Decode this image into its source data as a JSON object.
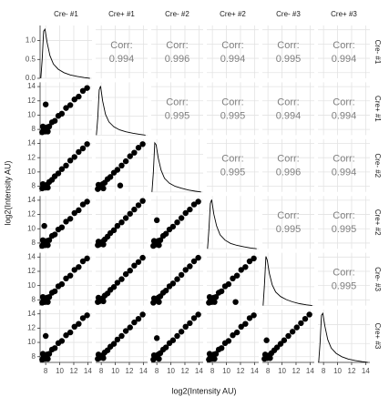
{
  "chart_data": {
    "type": "pairs",
    "x_label": "log2(Intensity AU)",
    "y_label": "log2(Intensity AU)",
    "variables": [
      "Cre- #1",
      "Cre+ #1",
      "Cre- #2",
      "Cre+ #2",
      "Cre- #3",
      "Cre+ #3"
    ],
    "corr_label": "Corr:",
    "correlations": [
      [
        0.994,
        0.996,
        0.994,
        0.995,
        0.994
      ],
      [
        0.995,
        0.995,
        0.994,
        0.994
      ],
      [
        0.995,
        0.996,
        0.994
      ],
      [
        0.995,
        0.995
      ],
      [
        0.995
      ]
    ],
    "xlim": [
      7.2,
      14.6
    ],
    "xticks": [
      8,
      10,
      12,
      14
    ],
    "ylim": [
      7.2,
      14.6
    ],
    "yticks": [
      8,
      10,
      12,
      14
    ],
    "density_ylim": [
      0,
      1.4
    ],
    "density_yticks": [
      {
        "value": 0,
        "label": "0.0"
      },
      {
        "value": 0.5,
        "label": "0.5"
      },
      {
        "value": 1,
        "label": "1.0"
      }
    ],
    "grid": true,
    "point_color": "#000000",
    "density": [
      {
        "x": [
          7.3,
          7.5,
          7.7,
          7.9,
          8.2,
          8.6,
          9.1,
          9.8,
          10.6,
          11.5,
          12.5,
          13.5,
          14.3
        ],
        "y": [
          0,
          0.5,
          1.25,
          1.3,
          0.95,
          0.6,
          0.38,
          0.24,
          0.15,
          0.09,
          0.05,
          0.02,
          0
        ]
      },
      {
        "x": [
          7.3,
          7.5,
          7.7,
          7.9,
          8.2,
          8.6,
          9.1,
          9.8,
          10.6,
          11.5,
          12.5,
          13.5,
          14.3
        ],
        "y": [
          0,
          0.45,
          1.2,
          1.3,
          0.9,
          0.55,
          0.35,
          0.22,
          0.14,
          0.09,
          0.05,
          0.02,
          0
        ]
      },
      {
        "x": [
          7.3,
          7.5,
          7.7,
          7.9,
          8.2,
          8.6,
          9.1,
          9.8,
          10.6,
          11.5,
          12.5,
          13.5,
          14.3
        ],
        "y": [
          0,
          0.5,
          1.3,
          1.25,
          0.9,
          0.58,
          0.36,
          0.23,
          0.15,
          0.1,
          0.05,
          0.02,
          0
        ]
      },
      {
        "x": [
          7.3,
          7.5,
          7.7,
          7.9,
          8.2,
          8.6,
          9.1,
          9.8,
          10.6,
          11.5,
          12.5,
          13.5,
          14.3
        ],
        "y": [
          0,
          0.5,
          1.2,
          1.3,
          0.92,
          0.6,
          0.37,
          0.23,
          0.14,
          0.09,
          0.05,
          0.02,
          0
        ]
      },
      {
        "x": [
          7.3,
          7.5,
          7.7,
          7.9,
          8.2,
          8.6,
          9.1,
          9.8,
          10.6,
          11.5,
          12.5,
          13.5,
          14.3
        ],
        "y": [
          0,
          0.55,
          1.3,
          1.2,
          0.85,
          0.55,
          0.36,
          0.24,
          0.16,
          0.1,
          0.05,
          0.02,
          0
        ]
      },
      {
        "x": [
          7.3,
          7.5,
          7.7,
          7.9,
          8.2,
          8.6,
          9.1,
          9.8,
          10.6,
          11.5,
          12.5,
          13.5,
          14.3
        ],
        "y": [
          0,
          0.5,
          1.25,
          1.3,
          0.95,
          0.6,
          0.38,
          0.24,
          0.15,
          0.09,
          0.05,
          0.02,
          0
        ]
      }
    ],
    "scatter": [
      [
        {
          "x": [
            7.5,
            7.7,
            7.9,
            8.2,
            8.5,
            8.9,
            9.3,
            9.8,
            10.3,
            10.9,
            11.5,
            12.1,
            12.7,
            13.3,
            13.9,
            7.6,
            8.3,
            8.0
          ],
          "y": [
            7.6,
            7.9,
            7.7,
            8.3,
            8.4,
            9.0,
            9.2,
            9.9,
            10.2,
            11.0,
            11.4,
            12.2,
            12.6,
            13.4,
            13.8,
            8.4,
            7.7,
            11.5
          ]
        }
      ],
      [
        {
          "x": [
            7.5,
            7.7,
            7.9,
            8.2,
            8.5,
            8.9,
            9.3,
            9.8,
            10.3,
            10.9,
            11.5,
            12.1,
            12.7,
            13.3,
            13.9,
            7.6,
            8.3
          ],
          "y": [
            7.7,
            7.9,
            7.8,
            8.2,
            8.6,
            8.9,
            9.4,
            9.8,
            10.4,
            10.9,
            11.6,
            12.1,
            12.8,
            13.3,
            13.9,
            8.3,
            7.8
          ]
        },
        {
          "x": [
            7.5,
            7.7,
            7.9,
            8.2,
            8.5,
            8.9,
            9.3,
            9.8,
            10.3,
            10.9,
            11.5,
            12.1,
            12.7,
            13.3,
            13.9,
            7.6,
            8.3,
            10.7
          ],
          "y": [
            7.6,
            7.8,
            7.9,
            8.3,
            8.5,
            9.0,
            9.3,
            9.9,
            10.3,
            10.9,
            11.5,
            12.2,
            12.7,
            13.4,
            13.9,
            8.2,
            7.7,
            8.1
          ]
        }
      ],
      [
        {
          "x": [
            7.5,
            7.7,
            7.9,
            8.2,
            8.5,
            8.9,
            9.3,
            9.8,
            10.3,
            10.9,
            11.5,
            12.1,
            12.7,
            13.3,
            13.9,
            7.6,
            8.3,
            7.8
          ],
          "y": [
            7.6,
            7.9,
            7.7,
            8.3,
            8.4,
            9.0,
            9.2,
            9.9,
            10.2,
            11.0,
            11.4,
            12.2,
            12.6,
            13.4,
            13.8,
            8.4,
            7.7,
            10.4
          ]
        },
        {
          "x": [
            7.5,
            7.7,
            7.9,
            8.2,
            8.5,
            8.9,
            9.3,
            9.8,
            10.3,
            10.9,
            11.5,
            12.1,
            12.7,
            13.3,
            13.9,
            7.6,
            8.3
          ],
          "y": [
            7.7,
            7.8,
            7.9,
            8.2,
            8.5,
            8.9,
            9.4,
            9.8,
            10.4,
            10.9,
            11.5,
            12.1,
            12.7,
            13.3,
            13.9,
            8.2,
            7.8
          ]
        },
        {
          "x": [
            7.5,
            7.7,
            7.9,
            8.2,
            8.5,
            8.9,
            9.3,
            9.8,
            10.3,
            10.9,
            11.5,
            12.1,
            12.7,
            13.3,
            13.9,
            7.6,
            8.3,
            8.0
          ],
          "y": [
            7.6,
            7.9,
            7.8,
            8.3,
            8.4,
            9.0,
            9.3,
            9.9,
            10.3,
            10.9,
            11.5,
            12.2,
            12.7,
            13.4,
            13.8,
            8.3,
            7.7,
            11.2
          ]
        }
      ],
      [
        {
          "x": [
            7.5,
            7.7,
            7.9,
            8.2,
            8.5,
            8.9,
            9.3,
            9.8,
            10.3,
            10.9,
            11.5,
            12.1,
            12.7,
            13.3,
            13.9,
            7.6,
            8.3
          ],
          "y": [
            7.6,
            7.9,
            7.7,
            8.3,
            8.4,
            9.0,
            9.2,
            9.9,
            10.2,
            11.0,
            11.4,
            12.2,
            12.6,
            13.4,
            13.8,
            8.4,
            7.7
          ]
        },
        {
          "x": [
            7.5,
            7.7,
            7.9,
            8.2,
            8.5,
            8.9,
            9.3,
            9.8,
            10.3,
            10.9,
            11.5,
            12.1,
            12.7,
            13.3,
            13.9,
            7.6,
            8.3
          ],
          "y": [
            7.7,
            7.8,
            7.9,
            8.2,
            8.6,
            8.9,
            9.4,
            9.8,
            10.4,
            10.9,
            11.6,
            12.1,
            12.8,
            13.3,
            13.9,
            8.3,
            7.8
          ]
        },
        {
          "x": [
            7.5,
            7.7,
            7.9,
            8.2,
            8.5,
            8.9,
            9.3,
            9.8,
            10.3,
            10.9,
            11.5,
            12.1,
            12.7,
            13.3,
            13.9,
            7.6,
            8.3
          ],
          "y": [
            7.6,
            7.8,
            7.9,
            8.3,
            8.5,
            9.0,
            9.3,
            9.9,
            10.3,
            10.9,
            11.5,
            12.2,
            12.7,
            13.4,
            13.9,
            8.2,
            7.7
          ]
        },
        {
          "x": [
            7.5,
            7.7,
            7.9,
            8.2,
            8.5,
            8.9,
            9.3,
            9.8,
            10.3,
            10.9,
            11.5,
            12.1,
            12.7,
            13.3,
            13.9,
            7.6,
            8.3,
            11.3
          ],
          "y": [
            7.6,
            7.9,
            7.7,
            8.3,
            8.4,
            9.0,
            9.2,
            9.9,
            10.2,
            11.0,
            11.4,
            12.2,
            12.6,
            13.4,
            13.8,
            8.4,
            7.7,
            7.7
          ]
        }
      ],
      [
        {
          "x": [
            7.5,
            7.7,
            7.9,
            8.2,
            8.5,
            8.9,
            9.3,
            9.8,
            10.3,
            10.9,
            11.5,
            12.1,
            12.7,
            13.3,
            13.9,
            7.6,
            8.3,
            8.0
          ],
          "y": [
            7.6,
            7.9,
            7.7,
            8.3,
            8.4,
            9.0,
            9.2,
            9.9,
            10.2,
            11.0,
            11.4,
            12.2,
            12.6,
            13.4,
            13.8,
            8.4,
            7.7,
            10.9
          ]
        },
        {
          "x": [
            7.5,
            7.7,
            7.9,
            8.2,
            8.5,
            8.9,
            9.3,
            9.8,
            10.3,
            10.9,
            11.5,
            12.1,
            12.7,
            13.3,
            13.9,
            7.6,
            8.3
          ],
          "y": [
            7.7,
            7.8,
            7.9,
            8.2,
            8.6,
            8.9,
            9.4,
            9.8,
            10.4,
            10.9,
            11.6,
            12.1,
            12.8,
            13.3,
            13.9,
            8.3,
            7.8
          ]
        },
        {
          "x": [
            7.5,
            7.7,
            7.9,
            8.2,
            8.5,
            8.9,
            9.3,
            9.8,
            10.3,
            10.9,
            11.5,
            12.1,
            12.7,
            13.3,
            13.9,
            7.6,
            8.3,
            8.0
          ],
          "y": [
            7.6,
            7.8,
            7.9,
            8.3,
            8.5,
            9.0,
            9.3,
            9.9,
            10.3,
            10.9,
            11.5,
            12.2,
            12.7,
            13.4,
            13.9,
            8.2,
            7.7,
            10.6
          ]
        },
        {
          "x": [
            7.5,
            7.7,
            7.9,
            8.2,
            8.5,
            8.9,
            9.3,
            9.8,
            10.3,
            10.9,
            11.5,
            12.1,
            12.7,
            13.3,
            13.9,
            7.6,
            8.3
          ],
          "y": [
            7.6,
            7.9,
            7.7,
            8.3,
            8.4,
            9.0,
            9.2,
            9.9,
            10.2,
            11.0,
            11.4,
            12.2,
            12.6,
            13.4,
            13.8,
            8.4,
            7.7
          ]
        },
        {
          "x": [
            7.5,
            7.7,
            7.9,
            8.2,
            8.5,
            8.9,
            9.3,
            9.8,
            10.3,
            10.9,
            11.5,
            12.1,
            12.7,
            13.3,
            13.9,
            7.6,
            8.3,
            7.8
          ],
          "y": [
            7.7,
            7.9,
            7.8,
            8.2,
            8.5,
            8.9,
            9.3,
            9.8,
            10.3,
            10.9,
            11.5,
            12.1,
            12.7,
            13.3,
            13.9,
            8.3,
            7.8,
            10.3
          ]
        }
      ]
    ]
  }
}
